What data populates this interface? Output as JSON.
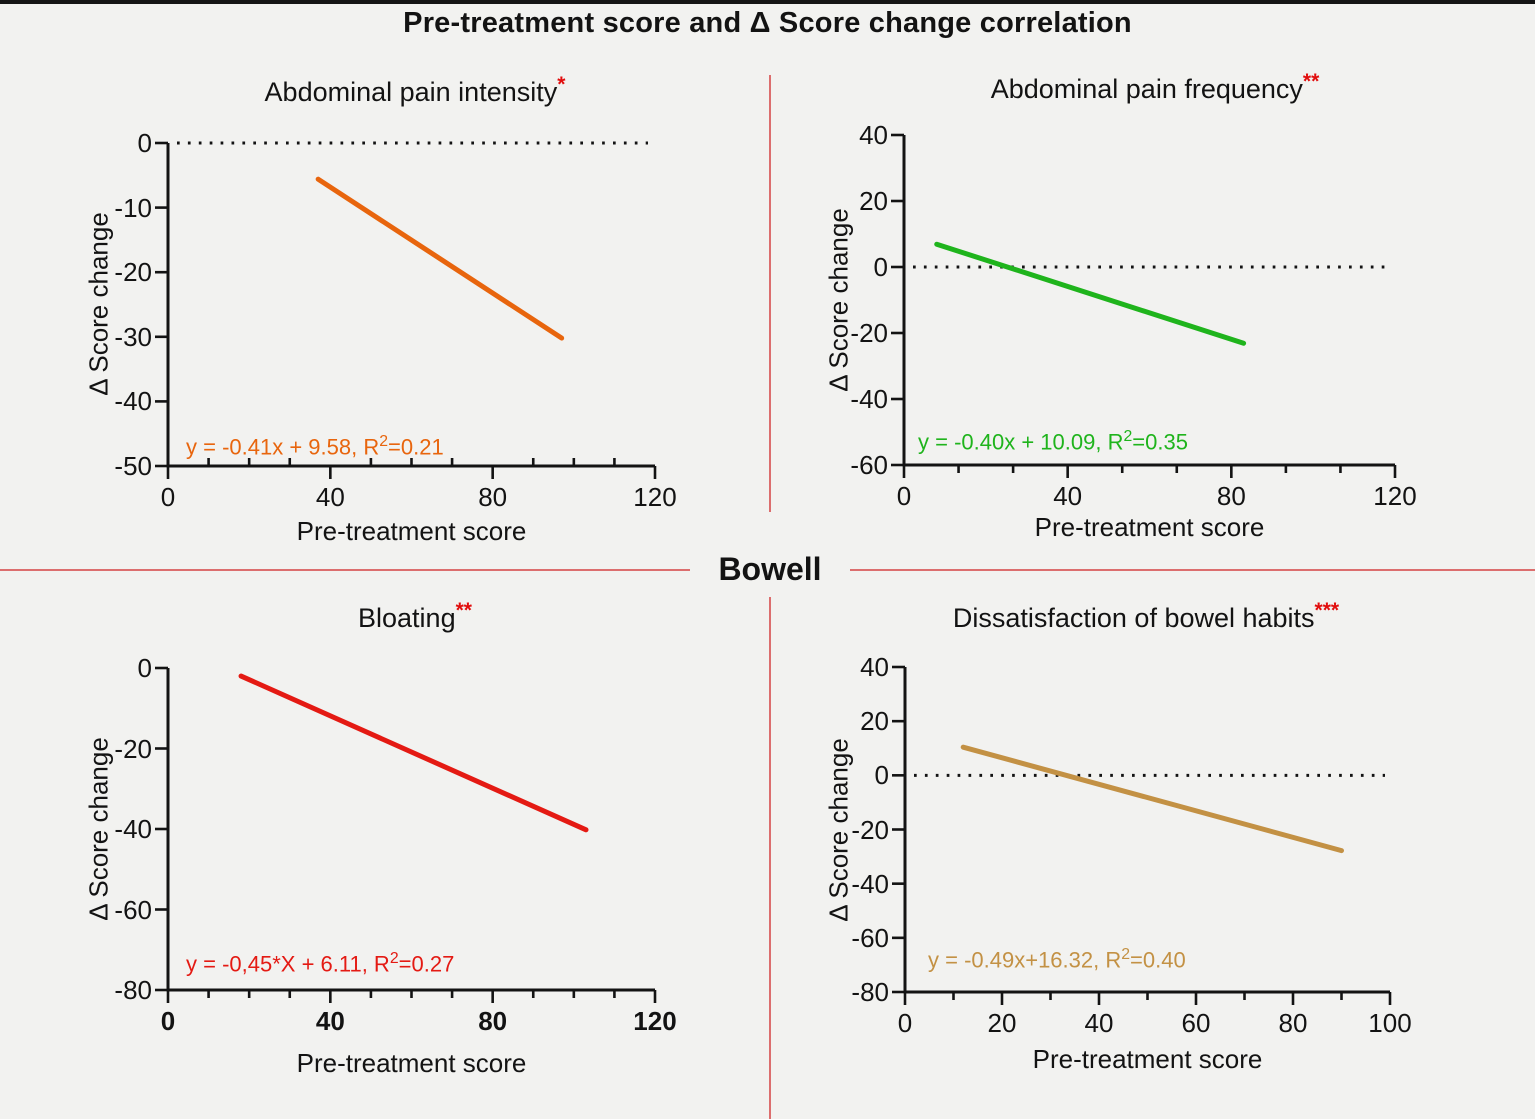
{
  "page": {
    "title": "Pre-treatment score and Δ Score change correlation",
    "center_label": "Bowell",
    "background_color": "#F2F2F0",
    "divider_color": "#DC6E6E",
    "significance_color": "#E10D0D"
  },
  "chart_data": [
    {
      "id": "abdominal-pain-intensity",
      "type": "line",
      "title": "Abdominal pain intensity",
      "significance": "*",
      "xlabel": "Pre-treatment score",
      "ylabel": "Δ Score change",
      "xlim": [
        0,
        120
      ],
      "xticks": [
        0,
        40,
        80,
        120
      ],
      "x_minor_per_interval": 3,
      "x_minor_inside": true,
      "x_tick_labels_bold": false,
      "ylim": [
        -50,
        0
      ],
      "yticks": [
        0,
        -10,
        -20,
        -30,
        -40,
        -50
      ],
      "zero_dotted_line": true,
      "color": "#E8650D",
      "equation": {
        "pre": "y = -0.41x + 9.58, R",
        "sup": "2",
        "post": "=0.21"
      },
      "regression": {
        "slope": -0.41,
        "intercept": 9.58,
        "r2": 0.21
      },
      "line_x": [
        37,
        97
      ],
      "line_y": [
        -5.6,
        -30.2
      ],
      "legend": "none",
      "grid": "off"
    },
    {
      "id": "abdominal-pain-frequency",
      "type": "line",
      "title": "Abdominal pain frequency",
      "significance": "**",
      "xlabel": "Pre-treatment score",
      "ylabel": "Δ Score change",
      "xlim": [
        0,
        120
      ],
      "xticks": [
        0,
        40,
        80,
        120
      ],
      "x_minor_per_interval": 2,
      "x_minor_inside": false,
      "x_tick_labels_bold": false,
      "ylim": [
        -60,
        40
      ],
      "yticks": [
        40,
        20,
        0,
        -20,
        -40,
        -60
      ],
      "zero_dotted_line": true,
      "color": "#1FB41C",
      "equation": {
        "pre": "y = -0.40x + 10.09, R",
        "sup": "2",
        "post": "=0.35"
      },
      "regression": {
        "slope": -0.4,
        "intercept": 10.09,
        "r2": 0.35
      },
      "line_x": [
        8,
        83
      ],
      "line_y": [
        6.9,
        -23.1
      ],
      "legend": "none",
      "grid": "off"
    },
    {
      "id": "bloating",
      "type": "line",
      "title": "Bloating",
      "significance": "**",
      "xlabel": "Pre-treatment score",
      "ylabel": "Δ Score change",
      "xlim": [
        0,
        120
      ],
      "xticks": [
        0,
        40,
        80,
        120
      ],
      "x_minor_per_interval": 3,
      "x_minor_inside": false,
      "x_tick_labels_bold": true,
      "ylim": [
        -80,
        0
      ],
      "yticks": [
        0,
        -20,
        -40,
        -60,
        -80
      ],
      "zero_dotted_line": false,
      "color": "#E41A13",
      "equation": {
        "pre": "y = -0,45*X + 6.11, R",
        "sup": "2",
        "post": "=0.27"
      },
      "regression": {
        "slope": -0.45,
        "intercept": 6.11,
        "r2": 0.27
      },
      "line_x": [
        18,
        103
      ],
      "line_y": [
        -2.0,
        -40.2
      ],
      "legend": "none",
      "grid": "off"
    },
    {
      "id": "dissatisfaction-of-bowel-habits",
      "type": "line",
      "title": "Dissatisfaction of bowel habits",
      "significance": "***",
      "xlabel": "Pre-treatment score",
      "ylabel": "Δ Score change",
      "xlim": [
        0,
        100
      ],
      "xticks": [
        0,
        20,
        40,
        60,
        80,
        100
      ],
      "x_minor_per_interval": 1,
      "x_minor_inside": false,
      "x_tick_labels_bold": false,
      "ylim": [
        -80,
        40
      ],
      "yticks": [
        40,
        20,
        0,
        -20,
        -40,
        -60,
        -80
      ],
      "zero_dotted_line": true,
      "color": "#C39144",
      "equation": {
        "pre": "y = -0.49x+16.32, R",
        "sup": "2",
        "post": "=0.40"
      },
      "regression": {
        "slope": -0.49,
        "intercept": 16.32,
        "r2": 0.4
      },
      "line_x": [
        12,
        90
      ],
      "line_y": [
        10.4,
        -27.8
      ],
      "legend": "none",
      "grid": "off"
    }
  ]
}
